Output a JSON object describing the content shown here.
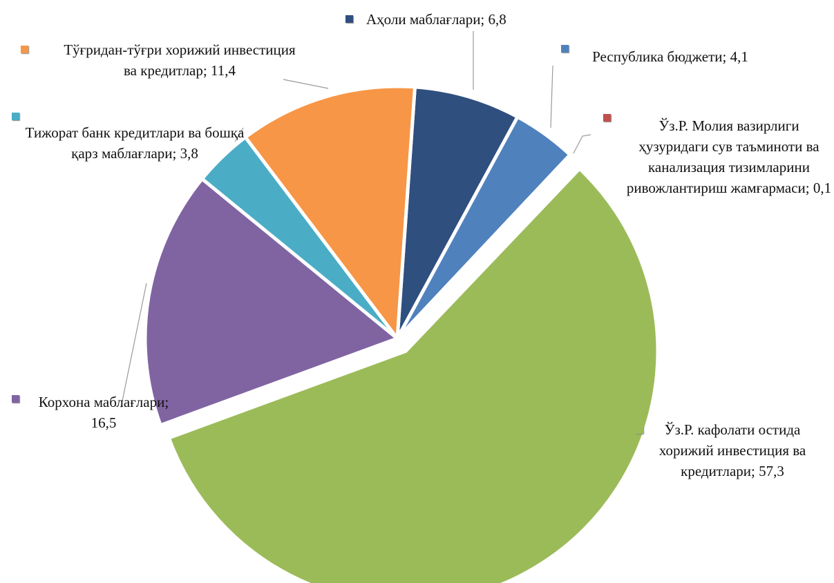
{
  "chart_data": {
    "type": "pie",
    "categories": [
      "Аҳоли маблағлари;",
      "Республика бюджети;",
      "Ўз.Р. Молия вазирлиги ҳузуридаги сув таъминоти ва канализация тизимларини ривожлантириш жамғармаси;",
      "Ўз.Р. кафолати остида хорижий инвестиция ва кредитлари;",
      "Корхона маблағлари;",
      "Тижорат банк кредитлари ва бошқа қарз маблағлари;",
      "Тўғридан-тўғри хорижий инвестиция ва кредитлар;"
    ],
    "values": [
      6.8,
      4.1,
      0.1,
      57.3,
      16.5,
      3.8,
      11.4
    ],
    "value_labels": [
      "6,8",
      "4,1",
      "0,1",
      "57,3",
      "16,5",
      "3,8",
      "11,4"
    ],
    "colors": [
      "#2f4f7f",
      "#4f81bd",
      "#c0504d",
      "#9bbb59",
      "#8064a2",
      "#4bacc6",
      "#f79646"
    ],
    "exploded": [
      false,
      false,
      false,
      true,
      false,
      false,
      false
    ]
  }
}
